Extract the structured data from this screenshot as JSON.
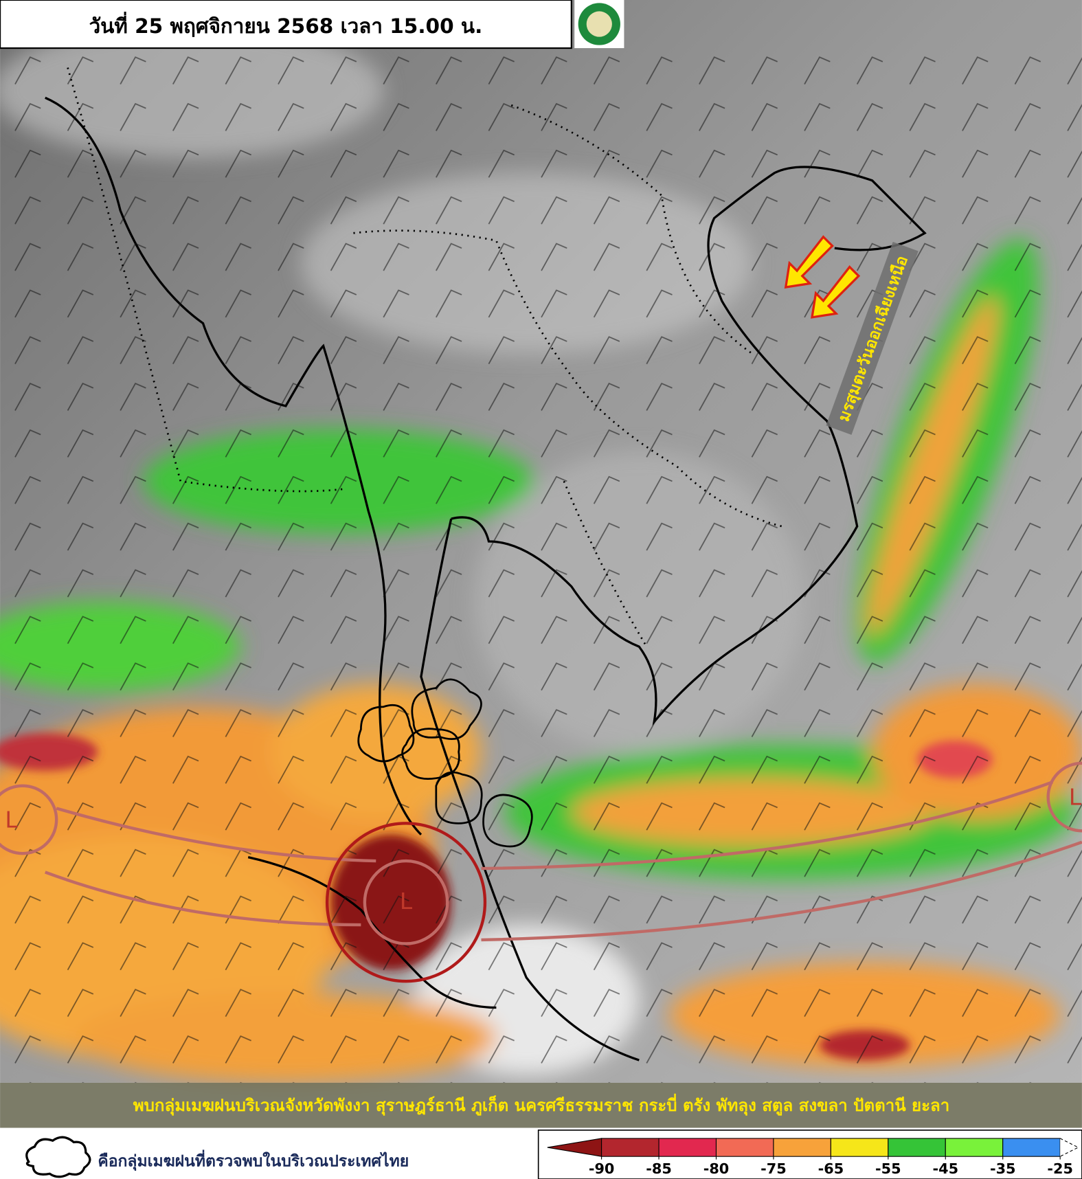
{
  "header": {
    "title": "วันที่ 25 พฤศจิกายน 2568 เวลา 15.00 น."
  },
  "annotations": {
    "monsoon": "มรสุมตะวันออกเฉียงเหนือ",
    "lows": [
      "L",
      "L",
      "L"
    ]
  },
  "banner": "พบกลุ่มเมฆฝนบริเวณจังหวัดพังงา สุราษฎร์ธานี ภูเก็ต นครศรีธรรมราช กระบี่ ตรัง พัทลุง สตูล สงขลา ปัตตานี ยะลา",
  "legend": {
    "cloud_note": "คือกลุ่มเมฆฝนที่ตรวจพบในบริเวณประเทศไทย",
    "scale": {
      "ticks": [
        -90,
        -85,
        -80,
        -75,
        -65,
        -55,
        -45,
        -35,
        -25
      ],
      "colors": [
        "#8e1414",
        "#b3262e",
        "#e2284f",
        "#f26a55",
        "#f7a23a",
        "#f6e619",
        "#35c437",
        "#79f23a",
        "#3a8ff0"
      ]
    }
  }
}
